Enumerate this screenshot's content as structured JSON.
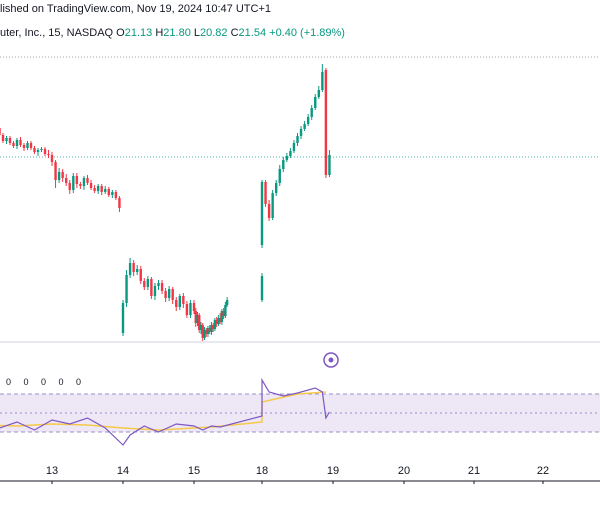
{
  "header": {
    "published_text": "lished on TradingView.com, Nov 19, 2024 10:47 UTC+1"
  },
  "symbol": {
    "name": "uter, Inc., 15, NASDAQ",
    "open_label": "O",
    "open": "21.13",
    "high_label": "H",
    "high": "21.80",
    "low_label": "L",
    "low": "20.82",
    "close_label": "C",
    "close": "21.54",
    "change": "+0.40 (+1.89%)"
  },
  "rsi_values_text": "0 0 0 0 0",
  "colors": {
    "up": "#089981",
    "down": "#f23645",
    "rsi_line": "#7e57c2",
    "rsi_ma": "#f7c948",
    "rsi_band": "#ede7f6"
  },
  "icons": [
    "plus-circle-icon"
  ],
  "chart_data": {
    "type": "candlestick",
    "x_tick_labels": [
      "13",
      "14",
      "15",
      "18",
      "19",
      "20",
      "21",
      "22"
    ],
    "price_candles": [
      [
        12.0,
        126,
        123,
        128,
        121
      ],
      [
        12.05,
        123,
        121,
        125,
        119
      ],
      [
        12.1,
        121,
        125,
        127,
        120
      ],
      [
        12.15,
        125,
        130,
        132,
        123
      ],
      [
        12.2,
        130,
        128,
        133,
        126
      ],
      [
        12.25,
        128,
        135,
        137,
        126
      ],
      [
        12.3,
        135,
        141,
        143,
        133
      ],
      [
        12.35,
        141,
        138,
        144,
        136
      ],
      [
        12.4,
        138,
        143,
        145,
        136
      ],
      [
        12.45,
        143,
        146,
        148,
        141
      ],
      [
        12.5,
        146,
        140,
        149,
        138
      ],
      [
        12.55,
        140,
        145,
        147,
        137
      ],
      [
        12.6,
        145,
        148,
        151,
        143
      ],
      [
        12.65,
        148,
        143,
        150,
        141
      ],
      [
        12.7,
        143,
        148,
        150,
        141
      ],
      [
        12.75,
        148,
        152,
        154,
        146
      ],
      [
        12.8,
        152,
        150,
        156,
        148
      ],
      [
        12.85,
        150,
        149,
        152,
        147
      ],
      [
        12.9,
        149,
        154,
        156,
        147
      ],
      [
        12.95,
        154,
        155,
        158,
        150
      ],
      [
        13.0,
        155,
        162,
        166,
        152
      ],
      [
        13.05,
        162,
        180,
        188,
        160
      ],
      [
        13.1,
        180,
        172,
        183,
        168
      ],
      [
        13.15,
        172,
        178,
        182,
        169
      ],
      [
        13.2,
        178,
        183,
        186,
        174
      ],
      [
        13.25,
        183,
        190,
        194,
        180
      ],
      [
        13.3,
        190,
        176,
        193,
        173
      ],
      [
        13.35,
        176,
        184,
        188,
        173
      ],
      [
        13.4,
        184,
        186,
        189,
        182
      ],
      [
        13.45,
        186,
        178,
        190,
        176
      ],
      [
        13.5,
        178,
        183,
        185,
        175
      ],
      [
        13.55,
        183,
        188,
        190,
        180
      ],
      [
        13.6,
        188,
        191,
        193,
        185
      ],
      [
        13.65,
        191,
        186,
        194,
        184
      ],
      [
        13.7,
        186,
        192,
        195,
        184
      ],
      [
        13.75,
        192,
        189,
        194,
        186
      ],
      [
        13.8,
        189,
        195,
        197,
        187
      ],
      [
        13.85,
        195,
        192,
        198,
        190
      ],
      [
        13.9,
        192,
        198,
        200,
        190
      ],
      [
        13.95,
        198,
        208,
        212,
        196
      ],
      [
        14.0,
        333,
        303,
        336,
        300
      ],
      [
        14.05,
        303,
        275,
        307,
        270
      ],
      [
        14.1,
        275,
        263,
        278,
        258
      ],
      [
        14.15,
        263,
        272,
        276,
        260
      ],
      [
        14.2,
        272,
        269,
        275,
        265
      ],
      [
        14.25,
        269,
        281,
        284,
        266
      ],
      [
        14.3,
        281,
        287,
        290,
        278
      ],
      [
        14.35,
        287,
        279,
        290,
        276
      ],
      [
        14.4,
        279,
        296,
        299,
        277
      ],
      [
        14.45,
        296,
        286,
        300,
        283
      ],
      [
        14.5,
        286,
        283,
        290,
        280
      ],
      [
        14.55,
        283,
        291,
        294,
        280
      ],
      [
        14.6,
        291,
        298,
        302,
        288
      ],
      [
        14.65,
        298,
        289,
        301,
        286
      ],
      [
        14.7,
        289,
        300,
        304,
        287
      ],
      [
        14.75,
        300,
        307,
        311,
        297
      ],
      [
        14.8,
        307,
        296,
        310,
        294
      ],
      [
        14.85,
        296,
        304,
        308,
        293
      ],
      [
        14.9,
        304,
        315,
        318,
        301
      ],
      [
        14.95,
        315,
        303,
        318,
        300
      ],
      [
        15.0,
        303,
        311,
        314,
        300
      ],
      [
        15.05,
        311,
        323,
        327,
        308
      ],
      [
        15.1,
        323,
        315,
        326,
        312
      ],
      [
        15.15,
        315,
        330,
        333,
        313
      ],
      [
        15.2,
        330,
        325,
        334,
        322
      ],
      [
        15.25,
        325,
        338,
        341,
        323
      ],
      [
        15.3,
        338,
        330,
        340,
        327
      ],
      [
        15.35,
        330,
        334,
        337,
        328
      ],
      [
        15.4,
        334,
        328,
        337,
        326
      ],
      [
        15.45,
        328,
        332,
        334,
        325
      ],
      [
        15.5,
        332,
        325,
        335,
        322
      ],
      [
        15.55,
        325,
        329,
        332,
        323
      ],
      [
        15.6,
        329,
        320,
        331,
        318
      ],
      [
        15.65,
        320,
        324,
        327,
        317
      ],
      [
        15.7,
        324,
        318,
        326,
        315
      ],
      [
        15.75,
        318,
        322,
        324,
        313
      ],
      [
        15.8,
        322,
        311,
        325,
        309
      ],
      [
        15.85,
        311,
        316,
        319,
        308
      ],
      [
        15.9,
        316,
        305,
        318,
        302
      ],
      [
        15.95,
        305,
        300,
        307,
        297
      ],
      [
        16.95,
        300,
        289,
        302,
        284
      ],
      [
        17.0,
        289,
        276,
        292,
        273
      ],
      [
        18.0,
        245,
        182,
        248,
        180
      ],
      [
        18.05,
        182,
        204,
        207,
        180
      ],
      [
        18.1,
        204,
        218,
        221,
        200
      ],
      [
        18.15,
        218,
        193,
        220,
        190
      ],
      [
        18.2,
        193,
        183,
        196,
        180
      ],
      [
        18.25,
        183,
        169,
        186,
        165
      ],
      [
        18.3,
        169,
        160,
        172,
        157
      ],
      [
        18.35,
        160,
        156,
        162,
        153
      ],
      [
        18.4,
        156,
        151,
        158,
        148
      ],
      [
        18.45,
        151,
        143,
        153,
        140
      ],
      [
        18.5,
        143,
        136,
        146,
        133
      ],
      [
        18.55,
        136,
        129,
        139,
        126
      ],
      [
        18.6,
        129,
        124,
        131,
        121
      ],
      [
        18.65,
        124,
        117,
        126,
        114
      ],
      [
        18.7,
        117,
        108,
        120,
        105
      ],
      [
        18.75,
        108,
        97,
        110,
        94
      ],
      [
        18.8,
        97,
        90,
        99,
        86
      ],
      [
        18.85,
        90,
        72,
        92,
        64
      ],
      [
        18.9,
        70,
        175,
        178,
        68
      ],
      [
        18.95,
        175,
        155,
        177,
        150
      ]
    ],
    "rsi_series": [
      [
        12.0,
        425
      ],
      [
        12.25,
        428
      ],
      [
        12.5,
        422
      ],
      [
        12.75,
        430
      ],
      [
        13.0,
        420
      ],
      [
        13.25,
        424
      ],
      [
        13.5,
        418
      ],
      [
        13.75,
        428
      ],
      [
        14.0,
        445
      ],
      [
        14.1,
        435
      ],
      [
        14.3,
        426
      ],
      [
        14.5,
        432
      ],
      [
        14.75,
        424
      ],
      [
        15.0,
        426
      ],
      [
        15.25,
        430
      ],
      [
        15.5,
        426
      ],
      [
        15.75,
        427
      ],
      [
        16.95,
        416
      ],
      [
        17.0,
        410
      ],
      [
        18.0,
        380
      ],
      [
        18.1,
        392
      ],
      [
        18.3,
        396
      ],
      [
        18.5,
        393
      ],
      [
        18.75,
        388
      ],
      [
        18.85,
        392
      ],
      [
        18.9,
        418
      ],
      [
        18.95,
        412
      ]
    ],
    "rsi_ma_series": [
      [
        12.0,
        425
      ],
      [
        12.5,
        426
      ],
      [
        13.0,
        424
      ],
      [
        13.5,
        425
      ],
      [
        14.0,
        428
      ],
      [
        14.5,
        430
      ],
      [
        15.0,
        428
      ],
      [
        15.5,
        427
      ],
      [
        16.95,
        422
      ],
      [
        18.0,
        402
      ],
      [
        18.5,
        394
      ],
      [
        18.9,
        392
      ]
    ]
  }
}
